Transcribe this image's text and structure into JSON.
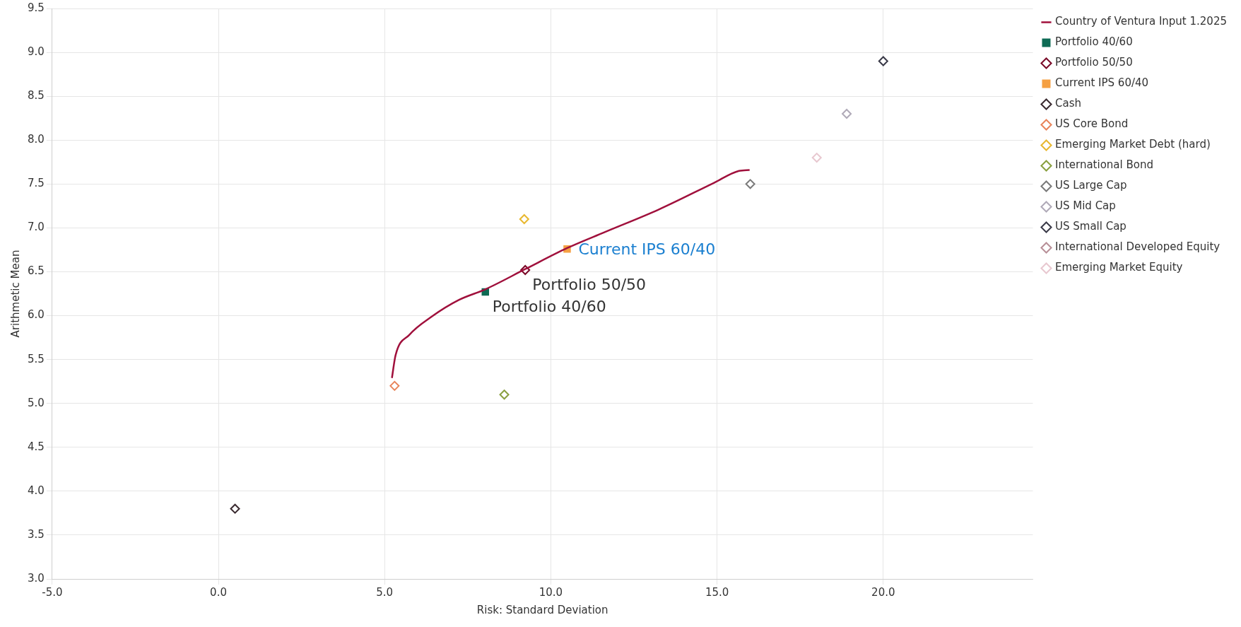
{
  "chart_data": {
    "type": "scatter",
    "xlabel": "Risk: Standard Deviation",
    "ylabel": "Arithmetic Mean",
    "xlim": [
      -5,
      24.5
    ],
    "xticks": [
      {
        "value": -5,
        "label": "-5.0"
      },
      {
        "value": 0,
        "label": "0.0"
      },
      {
        "value": 5,
        "label": "5.0"
      },
      {
        "value": 10,
        "label": "10.0"
      },
      {
        "value": 15,
        "label": "15.0"
      },
      {
        "value": 20,
        "label": "20.0"
      }
    ],
    "ylim": [
      3,
      9.5
    ],
    "yticks": [
      {
        "value": 3,
        "label": "3.0"
      },
      {
        "value": 3.5,
        "label": "3.5"
      },
      {
        "value": 4,
        "label": "4.0"
      },
      {
        "value": 4.5,
        "label": "4.5"
      },
      {
        "value": 5,
        "label": "5.0"
      },
      {
        "value": 5.5,
        "label": "5.5"
      },
      {
        "value": 6,
        "label": "6.0"
      },
      {
        "value": 6.5,
        "label": "6.5"
      },
      {
        "value": 7,
        "label": "7.0"
      },
      {
        "value": 7.5,
        "label": "7.5"
      },
      {
        "value": 8,
        "label": "8.0"
      },
      {
        "value": 8.5,
        "label": "8.5"
      },
      {
        "value": 9,
        "label": "9.0"
      },
      {
        "value": 9.5,
        "label": "9.5"
      }
    ],
    "grid": true,
    "legend": "right",
    "series": [
      {
        "name": "Country of Ventura Input 1.2025",
        "type": "line",
        "color": "#a0103c",
        "x": [
          5.22,
          5.33,
          5.74,
          6.42,
          7.24,
          8.03,
          9.23,
          10.49,
          11.61,
          13.25,
          14.89,
          15.66,
          15.98
        ],
        "values": [
          5.29,
          5.55,
          5.78,
          5.99,
          6.18,
          6.3,
          6.53,
          6.77,
          6.95,
          7.21,
          7.51,
          7.65,
          7.66
        ]
      },
      {
        "name": "Portfolio 40/60",
        "color": "#0e6b54",
        "marker": "square",
        "x": [
          8.03
        ],
        "values": [
          6.27
        ]
      },
      {
        "name": "Portfolio 50/50",
        "color": "#7a0a28",
        "marker": "diamond",
        "x": [
          9.23
        ],
        "values": [
          6.52
        ]
      },
      {
        "name": "Current IPS 60/40",
        "color": "#f5a043",
        "marker": "square",
        "x": [
          10.49
        ],
        "values": [
          6.76
        ]
      },
      {
        "name": "Cash",
        "color": "#3a2a30",
        "marker": "diamond",
        "x": [
          0.5
        ],
        "values": [
          3.8
        ]
      },
      {
        "name": "US Core Bond",
        "color": "#e8845a",
        "marker": "diamond",
        "x": [
          5.3
        ],
        "values": [
          5.2
        ]
      },
      {
        "name": "Emerging Market Debt (hard)",
        "color": "#e8b830",
        "marker": "diamond",
        "x": [
          9.2
        ],
        "values": [
          7.1
        ]
      },
      {
        "name": "International Bond",
        "color": "#8aa040",
        "marker": "diamond",
        "x": [
          8.6
        ],
        "values": [
          5.1
        ]
      },
      {
        "name": "US Large Cap",
        "color": "#7a7a7a",
        "marker": "diamond",
        "x": [
          16.0
        ],
        "values": [
          7.5
        ]
      },
      {
        "name": "US Mid Cap",
        "color": "#b0aab8",
        "marker": "diamond",
        "x": [
          18.9
        ],
        "values": [
          8.3
        ]
      },
      {
        "name": "US Small Cap",
        "color": "#3a3a48",
        "marker": "diamond",
        "x": [
          20.0
        ],
        "values": [
          8.9
        ]
      },
      {
        "name": "International Developed Equity",
        "color": "#b89098",
        "marker": "diamond",
        "x": [
          null
        ],
        "values": [
          null
        ]
      },
      {
        "name": "Emerging Market Equity",
        "color": "#e8c8d0",
        "marker": "diamond",
        "x": [
          18.0
        ],
        "values": [
          7.8
        ]
      }
    ],
    "annotations": [
      {
        "text": "Current IPS 60/40",
        "x": 10.49,
        "y": 6.76
      },
      {
        "text": "Portfolio 50/50",
        "x": 9.23,
        "y": 6.52
      },
      {
        "text": "Portfolio 40/60",
        "x": 8.03,
        "y": 6.27
      }
    ]
  }
}
